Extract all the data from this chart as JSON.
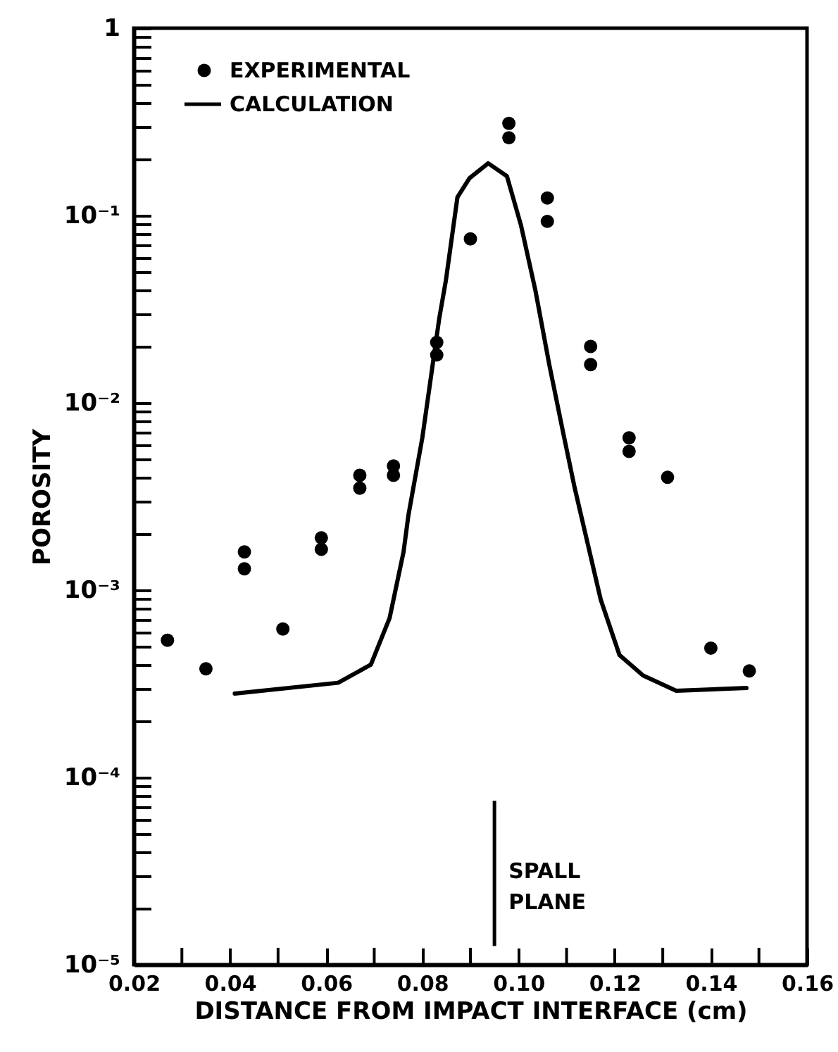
{
  "chart_data": {
    "type": "scatter",
    "xlabel": "DISTANCE FROM IMPACT INTERFACE (cm)",
    "ylabel": "POROSITY",
    "log": "y",
    "grid": false,
    "legend": "top left",
    "xlim": [
      0.02,
      0.16
    ],
    "ylim": [
      1e-05,
      1
    ],
    "xticks": [
      {
        "value": 0.02,
        "label": "0.02"
      },
      {
        "value": 0.03,
        "label": null
      },
      {
        "value": 0.04,
        "label": "0.04"
      },
      {
        "value": 0.05,
        "label": null
      },
      {
        "value": 0.06,
        "label": "0.06"
      },
      {
        "value": 0.07,
        "label": null
      },
      {
        "value": 0.08,
        "label": "0.08"
      },
      {
        "value": 0.09,
        "label": null
      },
      {
        "value": 0.1,
        "label": "0.10"
      },
      {
        "value": 0.11,
        "label": null
      },
      {
        "value": 0.12,
        "label": "0.12"
      },
      {
        "value": 0.13,
        "label": null
      },
      {
        "value": 0.14,
        "label": "0.14"
      },
      {
        "value": 0.15,
        "label": null
      },
      {
        "value": 0.16,
        "label": "0.16"
      }
    ],
    "yticks": [
      {
        "value": 1e-05,
        "label": "10⁻⁵"
      },
      {
        "value": 2e-05,
        "label": null
      },
      {
        "value": 3e-05,
        "label": null
      },
      {
        "value": 4e-05,
        "label": null
      },
      {
        "value": 5e-05,
        "label": null
      },
      {
        "value": 6e-05,
        "label": null
      },
      {
        "value": 7e-05,
        "label": null
      },
      {
        "value": 8e-05,
        "label": null
      },
      {
        "value": 9e-05,
        "label": null
      },
      {
        "value": 0.0001,
        "label": "10⁻⁴"
      },
      {
        "value": 0.0002,
        "label": null
      },
      {
        "value": 0.0003,
        "label": null
      },
      {
        "value": 0.0004,
        "label": null
      },
      {
        "value": 0.0005,
        "label": null
      },
      {
        "value": 0.0006,
        "label": null
      },
      {
        "value": 0.0007,
        "label": null
      },
      {
        "value": 0.0008,
        "label": null
      },
      {
        "value": 0.0009,
        "label": null
      },
      {
        "value": 0.001,
        "label": "10⁻³"
      },
      {
        "value": 0.002,
        "label": null
      },
      {
        "value": 0.003,
        "label": null
      },
      {
        "value": 0.004,
        "label": null
      },
      {
        "value": 0.005,
        "label": null
      },
      {
        "value": 0.006,
        "label": null
      },
      {
        "value": 0.007,
        "label": null
      },
      {
        "value": 0.008,
        "label": null
      },
      {
        "value": 0.009,
        "label": null
      },
      {
        "value": 0.01,
        "label": "10⁻²"
      },
      {
        "value": 0.02,
        "label": null
      },
      {
        "value": 0.03,
        "label": null
      },
      {
        "value": 0.04,
        "label": null
      },
      {
        "value": 0.05,
        "label": null
      },
      {
        "value": 0.06,
        "label": null
      },
      {
        "value": 0.07,
        "label": null
      },
      {
        "value": 0.08,
        "label": null
      },
      {
        "value": 0.09,
        "label": null
      },
      {
        "value": 0.1,
        "label": "10⁻¹"
      },
      {
        "value": 0.2,
        "label": null
      },
      {
        "value": 0.3,
        "label": null
      },
      {
        "value": 0.4,
        "label": null
      },
      {
        "value": 0.5,
        "label": null
      },
      {
        "value": 0.6,
        "label": null
      },
      {
        "value": 0.7,
        "label": null
      },
      {
        "value": 0.8,
        "label": null
      },
      {
        "value": 0.9,
        "label": null
      },
      1
    ],
    "series": [
      {
        "name": "EXPERIMENTAL",
        "color": "#000000",
        "marker": "circle",
        "x": [
          0.027,
          0.035,
          0.043,
          0.043,
          0.051,
          0.059,
          0.059,
          0.067,
          0.067,
          0.074,
          0.074,
          0.083,
          0.083,
          0.09,
          0.098,
          0.098,
          0.106,
          0.106,
          0.115,
          0.115,
          0.123,
          0.123,
          0.131,
          0.14,
          0.148
        ],
        "values": [
          0.00054,
          0.00038,
          0.0016,
          0.0013,
          0.00062,
          0.0019,
          0.00165,
          0.0041,
          0.0035,
          0.0046,
          0.0041,
          0.021,
          0.018,
          0.075,
          0.31,
          0.26,
          0.124,
          0.093,
          0.02,
          0.016,
          0.0065,
          0.0055,
          0.004,
          0.00049,
          0.00037
        ]
      },
      {
        "name": "CALCULATION",
        "type": "line",
        "color": "#000000",
        "x": [
          0.041,
          0.0625,
          0.0693,
          0.0732,
          0.0761,
          0.0771,
          0.08,
          0.0835,
          0.0849,
          0.0873,
          0.0898,
          0.0937,
          0.0976,
          0.1005,
          0.1035,
          0.1064,
          0.1093,
          0.1117,
          0.1171,
          0.121,
          0.1259,
          0.1328,
          0.1474
        ],
        "values": [
          0.00028,
          0.00032,
          0.0004,
          0.00071,
          0.0016,
          0.0025,
          0.0065,
          0.028,
          0.045,
          0.125,
          0.158,
          0.19,
          0.162,
          0.089,
          0.04,
          0.016,
          0.0069,
          0.0035,
          0.00089,
          0.00045,
          0.00035,
          0.00029,
          0.0003
        ]
      }
    ],
    "ref_lines": [
      {
        "axis": "x",
        "value": 0.095,
        "label": "SPALL PLANE"
      }
    ]
  }
}
